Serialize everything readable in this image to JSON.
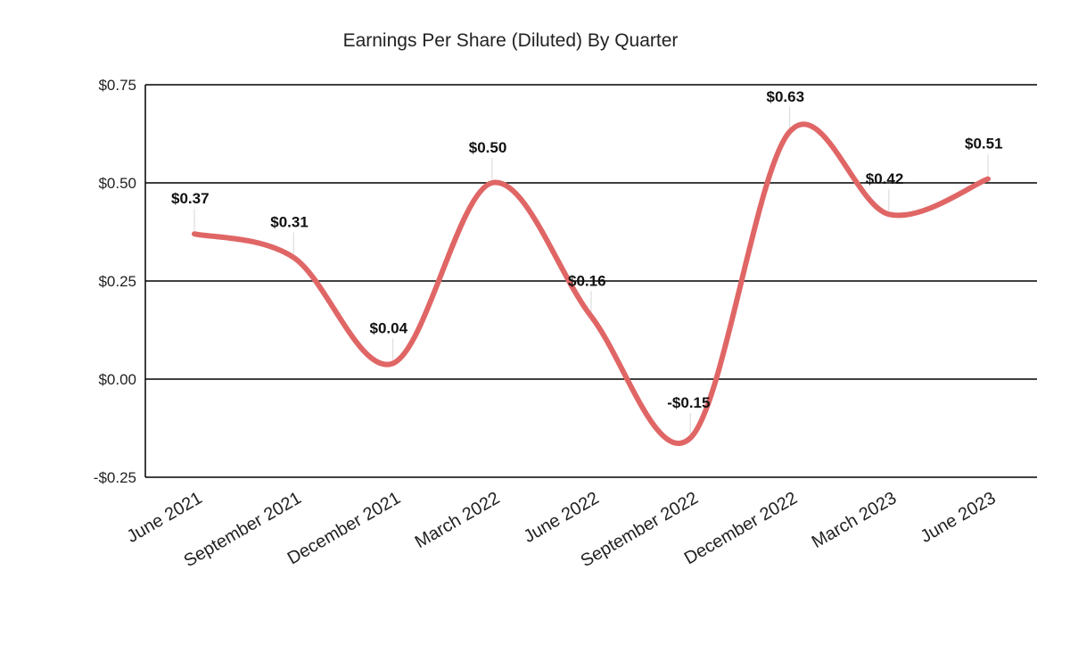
{
  "chart_data": {
    "type": "line",
    "title": "Earnings Per Share (Diluted) By Quarter",
    "xlabel": "",
    "ylabel": "",
    "categories": [
      "June 2021",
      "September 2021",
      "December 2021",
      "March 2022",
      "June 2022",
      "September 2022",
      "December 2022",
      "March 2023",
      "June 2023"
    ],
    "values": [
      0.37,
      0.31,
      0.04,
      0.5,
      0.16,
      -0.15,
      0.63,
      0.42,
      0.51
    ],
    "data_labels": [
      "$0.37",
      "$0.31",
      "$0.04",
      "$0.50",
      "$0.16",
      "-$0.15",
      "$0.63",
      "$0.42",
      "$0.51"
    ],
    "ylim": [
      -0.25,
      0.75
    ],
    "yticks": [
      0.75,
      0.5,
      0.25,
      0.0,
      -0.25
    ],
    "ytick_labels": [
      "$0.75",
      "$0.50",
      "$0.25",
      "$0.00",
      "-$0.25"
    ],
    "grid": true,
    "smooth": true,
    "line_color": "#e06666"
  }
}
